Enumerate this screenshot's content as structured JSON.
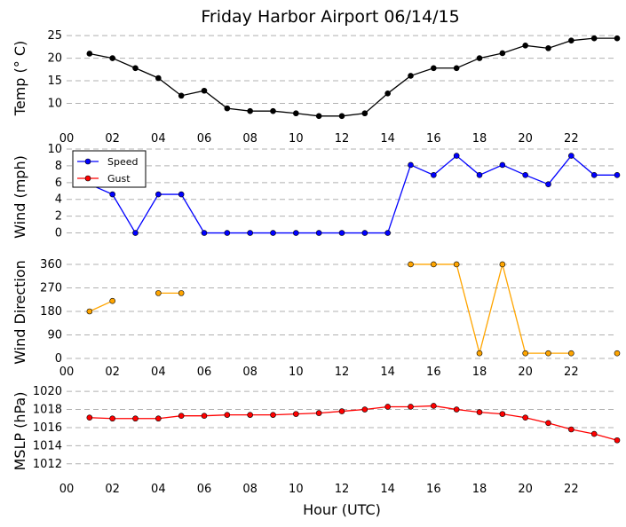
{
  "title": "Friday Harbor Airport 06/14/15",
  "colors": {
    "temp": "#000000",
    "speed": "#0000ff",
    "gust": "#ff0000",
    "direction": "#ffa500",
    "direction_marker": "#ffa500",
    "mslp": "#ff0000"
  },
  "chart_data": [
    {
      "type": "line",
      "ylabel": "Temp ($^\\circ$C)",
      "ylabel_display": "Temp (° C)",
      "xlim": [
        0,
        24
      ],
      "ylim": [
        5,
        26
      ],
      "yticks": [
        10,
        15,
        20,
        25
      ],
      "ytick_labels": [
        "10",
        "15",
        "20",
        "25"
      ],
      "xtick_labels": [
        "00",
        "02",
        "04",
        "06",
        "08",
        "10",
        "12",
        "14",
        "16",
        "18",
        "20",
        "22"
      ],
      "grid": true,
      "series": [
        {
          "x": [
            1,
            2,
            3,
            4,
            5,
            6,
            7,
            8,
            9,
            10,
            11,
            12,
            13,
            14,
            15,
            16,
            17,
            18,
            19,
            20,
            21,
            22,
            23,
            24
          ],
          "values": [
            21.0,
            20.0,
            17.8,
            15.6,
            11.7,
            12.8,
            8.9,
            8.3,
            8.3,
            7.8,
            7.2,
            7.2,
            7.8,
            12.2,
            16.1,
            17.8,
            17.8,
            20.0,
            21.1,
            22.8,
            22.2,
            23.9,
            24.4,
            24.4
          ]
        }
      ]
    },
    {
      "type": "line",
      "ylabel": "Wind (mph)",
      "xlim": [
        0,
        24
      ],
      "ylim": [
        -1,
        10
      ],
      "yticks": [
        0,
        2,
        4,
        6,
        8,
        10
      ],
      "ytick_labels": [
        "0",
        "2",
        "4",
        "6",
        "8",
        "10"
      ],
      "grid": true,
      "legend": "top-left",
      "series": [
        {
          "name": "Speed",
          "x": [
            1,
            2,
            3,
            4,
            5,
            6,
            7,
            8,
            9,
            10,
            11,
            12,
            13,
            14,
            15,
            16,
            17,
            18,
            19,
            20,
            21,
            22,
            23,
            24
          ],
          "values": [
            5.8,
            4.6,
            0,
            4.6,
            4.6,
            0,
            0,
            0,
            0,
            0,
            0,
            0,
            0,
            0,
            8.1,
            6.9,
            9.2,
            6.9,
            8.1,
            6.9,
            5.8,
            9.2,
            6.9,
            6.9
          ]
        },
        {
          "name": "Gust",
          "x": [],
          "values": []
        }
      ]
    },
    {
      "type": "scatter",
      "ylabel": "Wind Direction",
      "xlim": [
        0,
        24
      ],
      "ylim": [
        -10,
        370
      ],
      "yticks": [
        0,
        90,
        180,
        270,
        360
      ],
      "ytick_labels": [
        "0",
        "90",
        "180",
        "270",
        "360"
      ],
      "xtick_labels": [
        "00",
        "02",
        "04",
        "06",
        "08",
        "10",
        "12",
        "14",
        "16",
        "18",
        "20",
        "22"
      ],
      "grid": true,
      "series": [
        {
          "x": [
            1,
            2,
            4,
            5,
            15,
            16,
            17,
            18,
            19,
            20,
            21,
            22,
            24
          ],
          "values": [
            180,
            220,
            250,
            250,
            360,
            360,
            360,
            20,
            360,
            20,
            20,
            20,
            20
          ],
          "segments": [
            [
              0,
              1
            ],
            [
              2,
              3
            ],
            [
              4,
              5,
              6,
              7,
              8,
              9,
              10,
              11
            ],
            [
              12
            ]
          ]
        }
      ]
    },
    {
      "type": "line",
      "ylabel": "MSLP (hPa)",
      "xlabel": "Hour (UTC)",
      "xlim": [
        0,
        24
      ],
      "ylim": [
        1011,
        1020.5
      ],
      "yticks": [
        1012,
        1014,
        1016,
        1018,
        1020
      ],
      "ytick_labels": [
        "1012",
        "1014",
        "1016",
        "1018",
        "1020"
      ],
      "xtick_labels": [
        "00",
        "02",
        "04",
        "06",
        "08",
        "10",
        "12",
        "14",
        "16",
        "18",
        "20",
        "22"
      ],
      "grid": true,
      "series": [
        {
          "x": [
            1,
            2,
            3,
            4,
            5,
            6,
            7,
            8,
            9,
            10,
            11,
            12,
            13,
            14,
            15,
            16,
            17,
            18,
            19,
            20,
            21,
            22,
            23,
            24
          ],
          "values": [
            1017.1,
            1017.0,
            1017.0,
            1017.0,
            1017.3,
            1017.3,
            1017.4,
            1017.4,
            1017.4,
            1017.5,
            1017.6,
            1017.8,
            1018.0,
            1018.3,
            1018.3,
            1018.4,
            1018.0,
            1017.7,
            1017.5,
            1017.1,
            1016.5,
            1015.8,
            1015.3,
            1014.6
          ]
        }
      ]
    }
  ]
}
